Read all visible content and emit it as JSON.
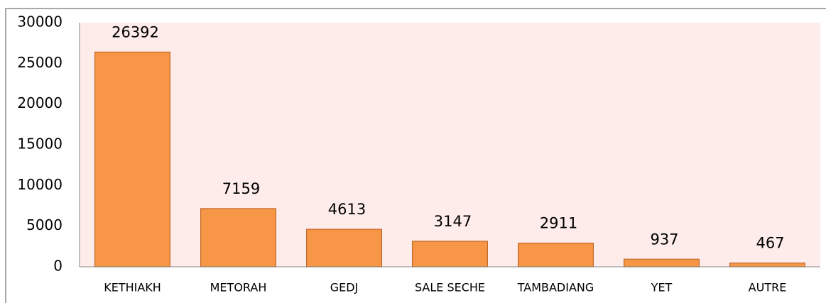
{
  "chart_data": {
    "type": "bar",
    "categories": [
      "KETHIAKH",
      "METORAH",
      "GEDJ",
      "SALE SECHE",
      "TAMBADIANG",
      "YET",
      "AUTRE"
    ],
    "values": [
      26392,
      7159,
      4613,
      3147,
      2911,
      937,
      467
    ],
    "color": "#f79646",
    "ylim": [
      0,
      30000
    ],
    "yticks": [
      0,
      5000,
      10000,
      15000,
      20000,
      25000,
      30000
    ],
    "grid": false
  }
}
